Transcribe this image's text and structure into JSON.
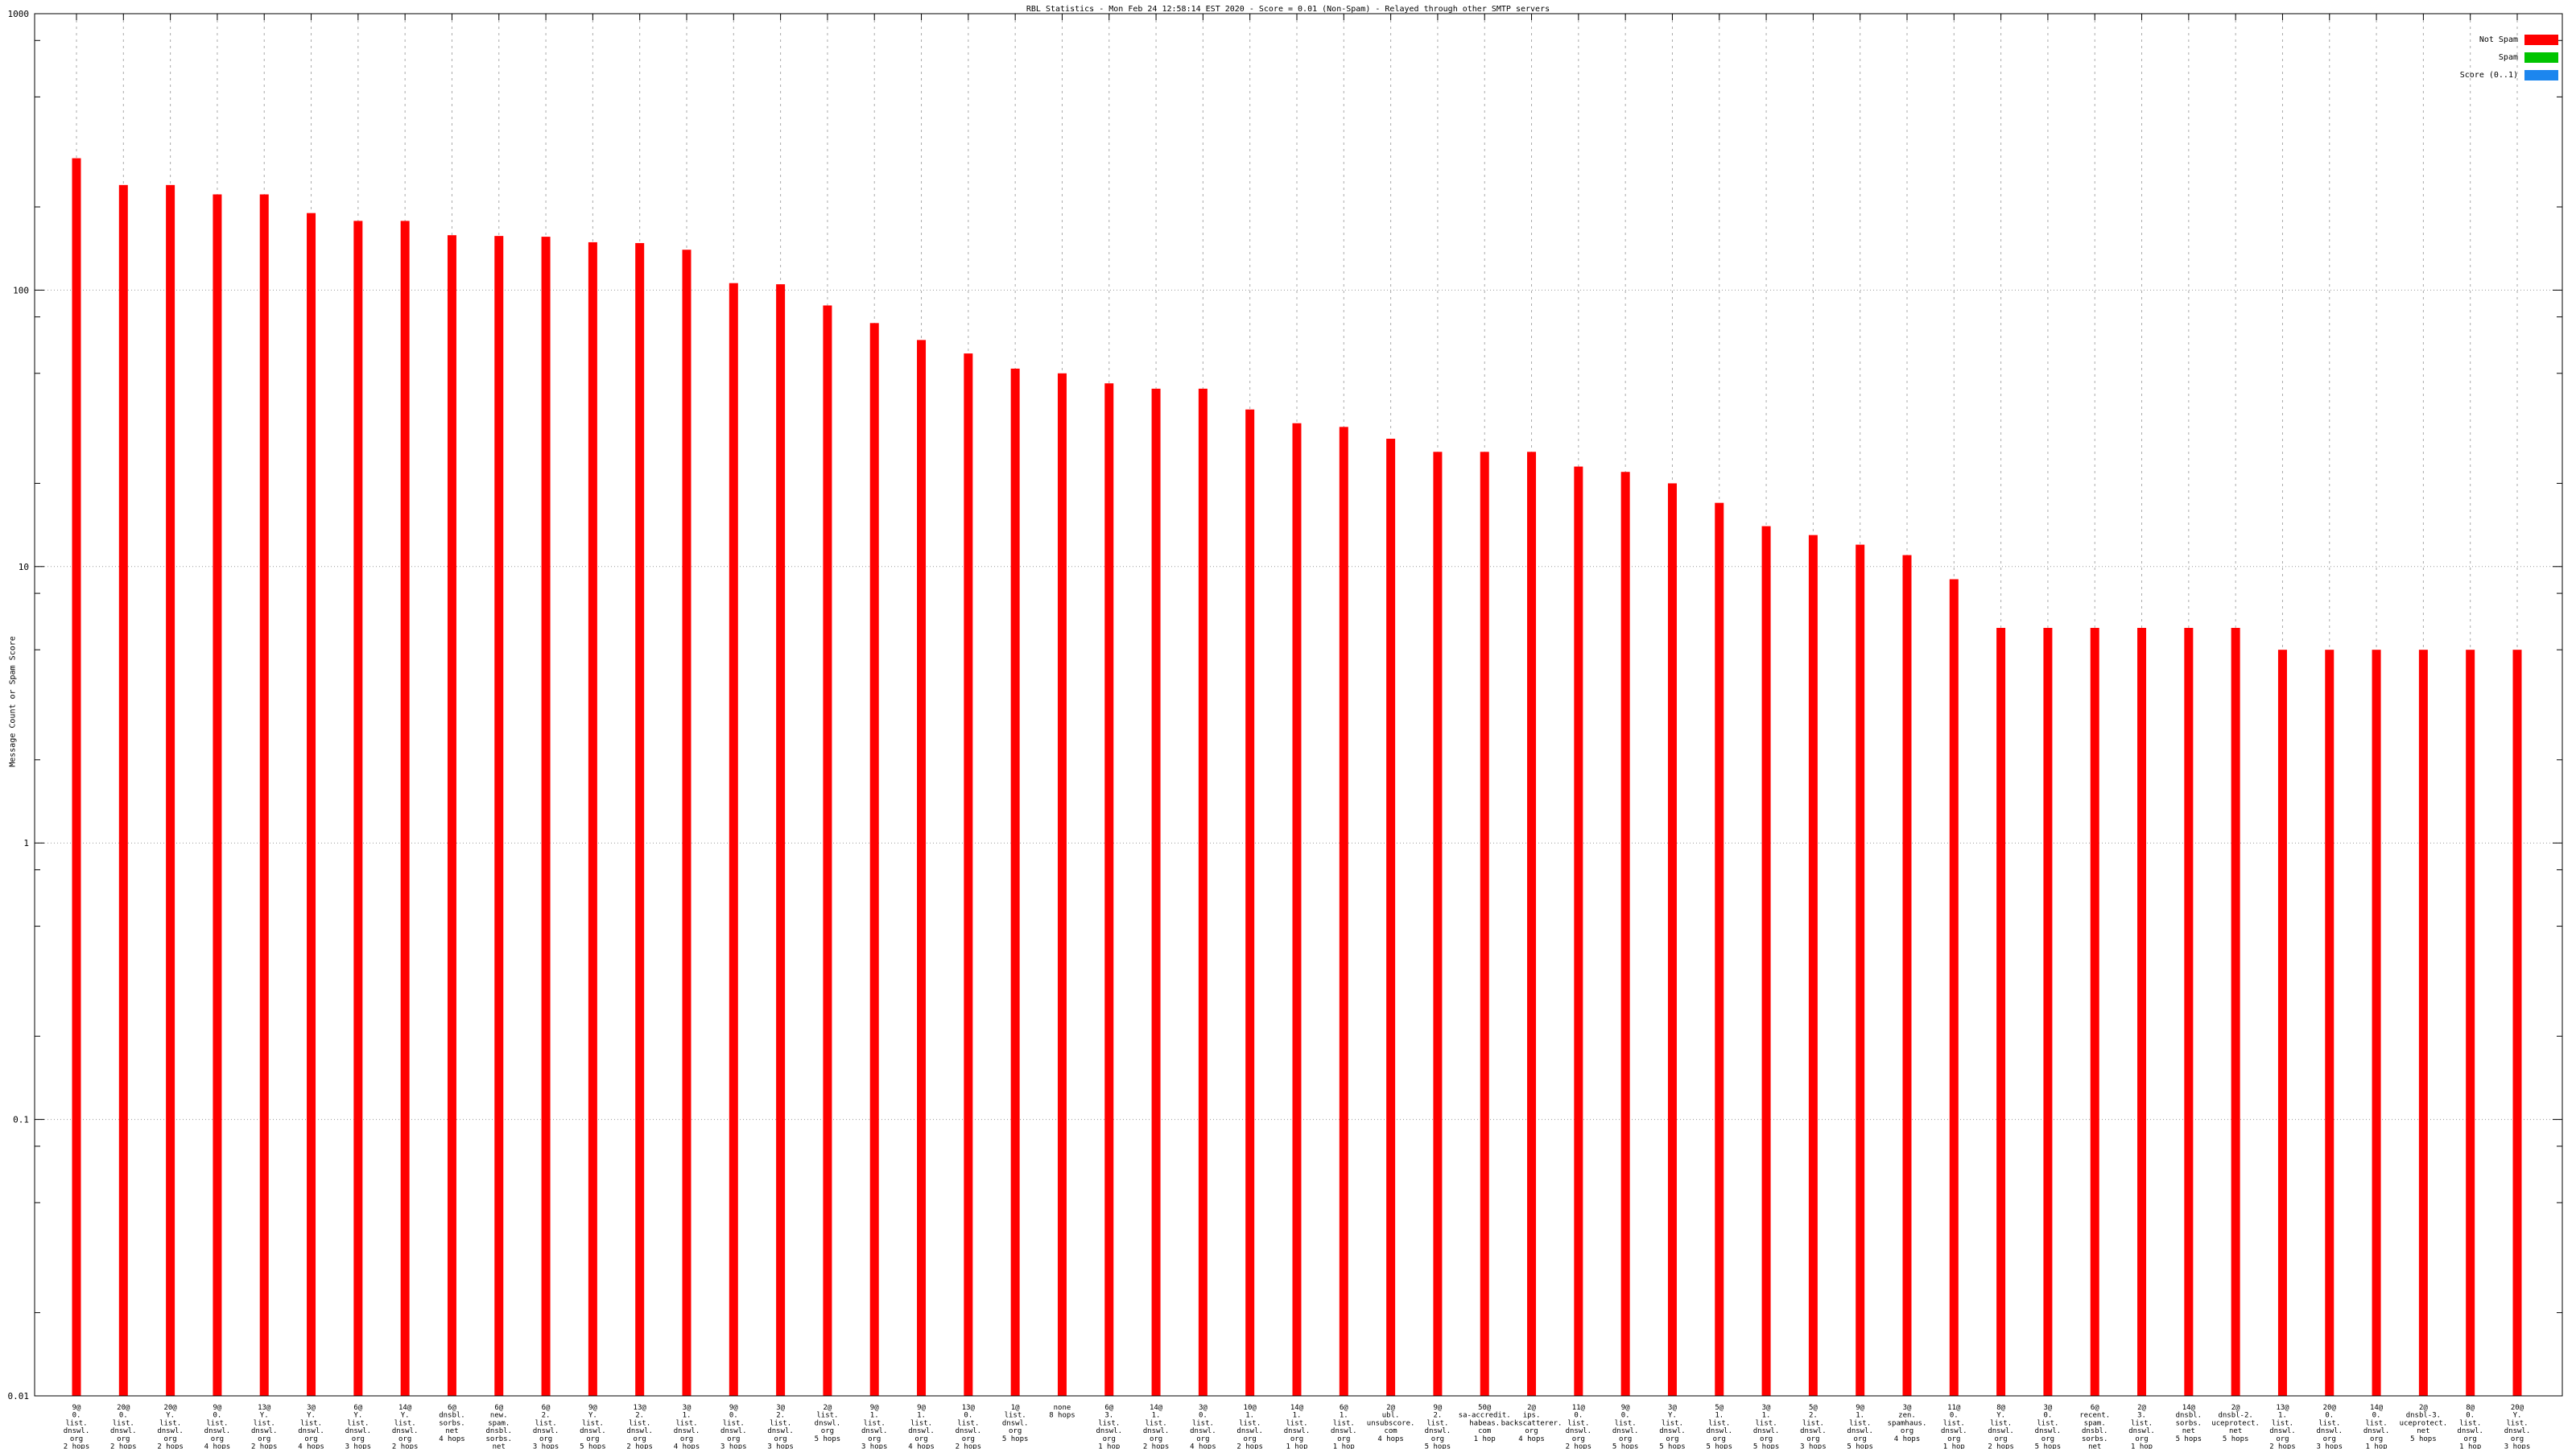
{
  "chart_data": {
    "type": "bar",
    "title": "RBL Statistics - Mon Feb 24 12:58:14 EST 2020 - Score = 0.01 (Non-Spam) - Relayed through other SMTP servers",
    "ylabel": "Message Count or Spam Score",
    "yscale": "log",
    "ylim": [
      0.01,
      1000
    ],
    "ytick_labels": [
      "1000",
      "100",
      "10",
      "1",
      "0.1",
      "0.01"
    ],
    "grid": "on",
    "legend_position": "top-right",
    "legend": [
      {
        "label": "Not Spam",
        "color": "#ff0000"
      },
      {
        "label": "Spam",
        "color": "#00c400"
      },
      {
        "label": "Score (0..1)",
        "color": "#1c86ee"
      }
    ],
    "series": [
      {
        "name": "Not Spam",
        "color": "#ff0000",
        "values": [
          300,
          240,
          240,
          222,
          222,
          190,
          178,
          178,
          158,
          157,
          156,
          149,
          148,
          140,
          106,
          105,
          88,
          76,
          66,
          59,
          52,
          50,
          46,
          44,
          44,
          37,
          33,
          32,
          29,
          26,
          26,
          26,
          23,
          22,
          20,
          17,
          14,
          13,
          12,
          11,
          9,
          6,
          6,
          6,
          6,
          6,
          6,
          5,
          5,
          5,
          5,
          5,
          5
        ]
      }
    ],
    "categories": [
      [
        "9@",
        "0.",
        "list.",
        "dnswl.",
        "org",
        "2 hops"
      ],
      [
        "20@",
        "0.",
        "list.",
        "dnswl.",
        "org",
        "2 hops"
      ],
      [
        "20@",
        "Y.",
        "list.",
        "dnswl.",
        "org",
        "2 hops"
      ],
      [
        "9@",
        "0.",
        "list.",
        "dnswl.",
        "org",
        "4 hops"
      ],
      [
        "13@",
        "Y.",
        "list.",
        "dnswl.",
        "org",
        "2 hops"
      ],
      [
        "3@",
        "Y.",
        "list.",
        "dnswl.",
        "org",
        "4 hops"
      ],
      [
        "6@",
        "Y.",
        "list.",
        "dnswl.",
        "org",
        "3 hops"
      ],
      [
        "14@",
        "Y.",
        "list.",
        "dnswl.",
        "org",
        "2 hops"
      ],
      [
        "6@",
        "dnsbl.",
        "sorbs.",
        "net",
        "4 hops"
      ],
      [
        "6@",
        "new.",
        "spam.",
        "dnsbl.",
        "sorbs.",
        "net",
        "4 hops"
      ],
      [
        "6@",
        "2.",
        "list.",
        "dnswl.",
        "org",
        "3 hops"
      ],
      [
        "9@",
        "Y.",
        "list.",
        "dnswl.",
        "org",
        "5 hops"
      ],
      [
        "13@",
        "2.",
        "list.",
        "dnswl.",
        "org",
        "2 hops"
      ],
      [
        "3@",
        "1.",
        "list.",
        "dnswl.",
        "org",
        "4 hops"
      ],
      [
        "9@",
        "0.",
        "list.",
        "dnswl.",
        "org",
        "3 hops"
      ],
      [
        "3@",
        "2.",
        "list.",
        "dnswl.",
        "org",
        "3 hops"
      ],
      [
        "2@",
        "list.",
        "dnswl.",
        "org",
        "5 hops"
      ],
      [
        "9@",
        "1.",
        "list.",
        "dnswl.",
        "org",
        "3 hops"
      ],
      [
        "9@",
        "1.",
        "list.",
        "dnswl.",
        "org",
        "4 hops"
      ],
      [
        "13@",
        "0.",
        "list.",
        "dnswl.",
        "org",
        "2 hops"
      ],
      [
        "1@",
        "list.",
        "dnswl.",
        "org",
        "5 hops"
      ],
      [
        "none",
        "8 hops"
      ],
      [
        "6@",
        "3.",
        "list.",
        "dnswl.",
        "org",
        "1 hop"
      ],
      [
        "14@",
        "1.",
        "list.",
        "dnswl.",
        "org",
        "2 hops"
      ],
      [
        "3@",
        "0.",
        "list.",
        "dnswl.",
        "org",
        "4 hops"
      ],
      [
        "10@",
        "1.",
        "list.",
        "dnswl.",
        "org",
        "2 hops"
      ],
      [
        "14@",
        "1.",
        "list.",
        "dnswl.",
        "org",
        "1 hop"
      ],
      [
        "6@",
        "1.",
        "list.",
        "dnswl.",
        "org",
        "1 hop"
      ],
      [
        "2@",
        "ubl.",
        "unsubscore.",
        "com",
        "4 hops"
      ],
      [
        "9@",
        "2.",
        "list.",
        "dnswl.",
        "org",
        "5 hops"
      ],
      [
        "50@",
        "sa-accredit.",
        "habeas.",
        "com",
        "1 hop"
      ],
      [
        "2@",
        "ips.",
        "backscatterer.",
        "org",
        "4 hops"
      ],
      [
        "11@",
        "0.",
        "list.",
        "dnswl.",
        "org",
        "2 hops"
      ],
      [
        "9@",
        "0.",
        "list.",
        "dnswl.",
        "org",
        "5 hops"
      ],
      [
        "3@",
        "Y.",
        "list.",
        "dnswl.",
        "org",
        "5 hops"
      ],
      [
        "5@",
        "1.",
        "list.",
        "dnswl.",
        "org",
        "5 hops"
      ],
      [
        "3@",
        "1.",
        "list.",
        "dnswl.",
        "org",
        "5 hops"
      ],
      [
        "5@",
        "2.",
        "list.",
        "dnswl.",
        "org",
        "3 hops"
      ],
      [
        "9@",
        "1.",
        "list.",
        "dnswl.",
        "org",
        "5 hops"
      ],
      [
        "3@",
        "zen.",
        "spamhaus.",
        "org",
        "4 hops"
      ],
      [
        "11@",
        "0.",
        "list.",
        "dnswl.",
        "org",
        "1 hop"
      ],
      [
        "8@",
        "Y.",
        "list.",
        "dnswl.",
        "org",
        "2 hops"
      ],
      [
        "3@",
        "0.",
        "list.",
        "dnswl.",
        "org",
        "5 hops"
      ],
      [
        "6@",
        "recent.",
        "spam.",
        "dnsbl.",
        "sorbs.",
        "net",
        "5 hops"
      ],
      [
        "2@",
        "3.",
        "list.",
        "dnswl.",
        "org",
        "1 hop"
      ],
      [
        "14@",
        "dnsbl.",
        "sorbs.",
        "net",
        "5 hops"
      ],
      [
        "2@",
        "dnsbl-2.",
        "uceprotect.",
        "net",
        "5 hops"
      ],
      [
        "13@",
        "1.",
        "list.",
        "dnswl.",
        "org",
        "2 hops"
      ],
      [
        "20@",
        "0.",
        "list.",
        "dnswl.",
        "org",
        "3 hops"
      ],
      [
        "14@",
        "0.",
        "list.",
        "dnswl.",
        "org",
        "1 hop"
      ],
      [
        "2@",
        "dnsbl-3.",
        "uceprotect.",
        "net",
        "5 hops"
      ],
      [
        "8@",
        "0.",
        "list.",
        "dnswl.",
        "org",
        "1 hop"
      ],
      [
        "20@",
        "Y.",
        "list.",
        "dnswl.",
        "org",
        "3 hops"
      ]
    ]
  }
}
